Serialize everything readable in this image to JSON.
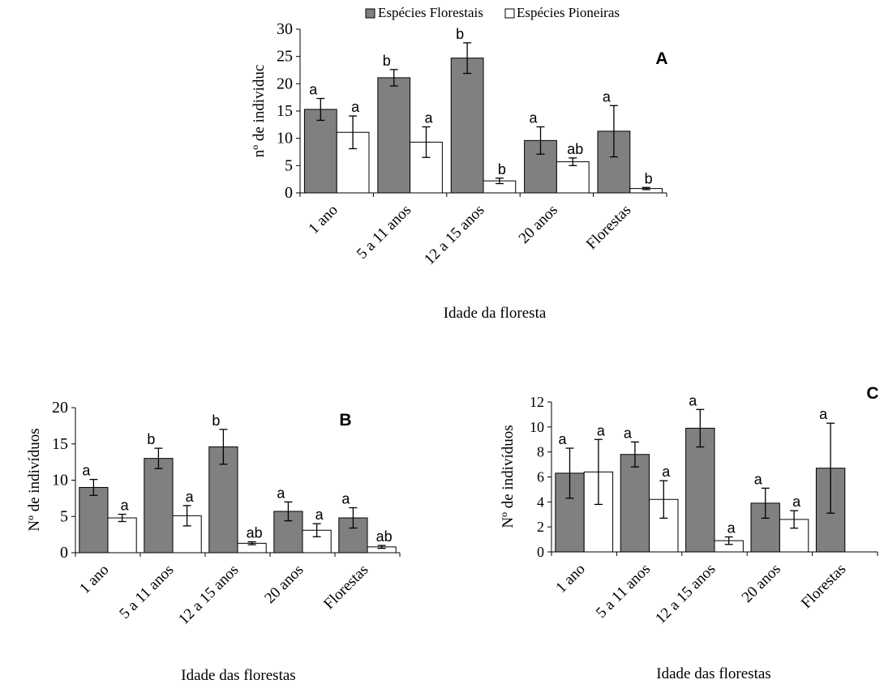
{
  "legend": {
    "entries": [
      {
        "label": "Espécies Florestais",
        "color": "#808080"
      },
      {
        "label": "Espécies Pioneiras",
        "color": "#ffffff"
      }
    ]
  },
  "chart_data": [
    {
      "type": "bar",
      "panel_label": "A",
      "categories": [
        "1 ano",
        "5 a 11 anos",
        "12 a 15 anos",
        "20 anos",
        "Florestas"
      ],
      "series": [
        {
          "name": "Espécies Florestais",
          "color": "#808080",
          "values": [
            15.3,
            21.1,
            24.7,
            9.6,
            11.3
          ],
          "errors": [
            2.0,
            1.5,
            2.8,
            2.5,
            4.7
          ],
          "letters": [
            "a",
            "b",
            "b",
            "a",
            "a"
          ]
        },
        {
          "name": "Espécies Pioneiras",
          "color": "#ffffff",
          "values": [
            11.1,
            9.3,
            2.2,
            5.7,
            0.8
          ],
          "errors": [
            3.0,
            2.8,
            0.5,
            0.7,
            0.2
          ],
          "letters": [
            "a",
            "a",
            "b",
            "ab",
            "b"
          ]
        }
      ],
      "ylim": [
        0,
        30
      ],
      "yticks": [
        0,
        5,
        10,
        15,
        20,
        25,
        30
      ],
      "xlabel": "Idade da floresta",
      "ylabel": "nº de individuc"
    },
    {
      "type": "bar",
      "panel_label": "B",
      "categories": [
        "1 ano",
        "5 a 11 anos",
        "12 a 15 anos",
        "20 anos",
        "Florestas"
      ],
      "series": [
        {
          "name": "Espécies Florestais",
          "color": "#808080",
          "values": [
            9.0,
            13.0,
            14.6,
            5.7,
            4.8
          ],
          "errors": [
            1.1,
            1.4,
            2.4,
            1.3,
            1.4
          ],
          "letters": [
            "a",
            "b",
            "b",
            "a",
            "a"
          ]
        },
        {
          "name": "Espécies Pioneiras",
          "color": "#ffffff",
          "values": [
            4.8,
            5.1,
            1.3,
            3.1,
            0.8
          ],
          "errors": [
            0.5,
            1.4,
            0.2,
            0.9,
            0.2
          ],
          "letters": [
            "a",
            "a",
            "ab",
            "a",
            "ab"
          ]
        }
      ],
      "ylim": [
        0,
        20
      ],
      "yticks": [
        0,
        5,
        10,
        15,
        20
      ],
      "xlabel": "Idade das florestas",
      "ylabel": "Nº de indivíduos"
    },
    {
      "type": "bar",
      "panel_label": "C",
      "categories": [
        "1 ano",
        "5 a 11 anos",
        "12 a 15 anos",
        "20 anos",
        "Florestas"
      ],
      "series": [
        {
          "name": "Espécies Florestais",
          "color": "#808080",
          "values": [
            6.3,
            7.8,
            9.9,
            3.9,
            6.7
          ],
          "errors": [
            2.0,
            1.0,
            1.5,
            1.2,
            3.6
          ],
          "letters": [
            "a",
            "a",
            "a",
            "a",
            "a"
          ]
        },
        {
          "name": "Espécies Pioneiras",
          "color": "#ffffff",
          "values": [
            6.4,
            4.2,
            0.9,
            2.6,
            0.0
          ],
          "errors": [
            2.6,
            1.5,
            0.3,
            0.7,
            0.0
          ],
          "letters": [
            "a",
            "a",
            "a",
            "a",
            ""
          ]
        }
      ],
      "ylim": [
        0,
        12
      ],
      "yticks": [
        0,
        2,
        4,
        6,
        8,
        10,
        12
      ],
      "xlabel": "Idade das florestas",
      "ylabel": "Nº de indivíduos"
    }
  ]
}
